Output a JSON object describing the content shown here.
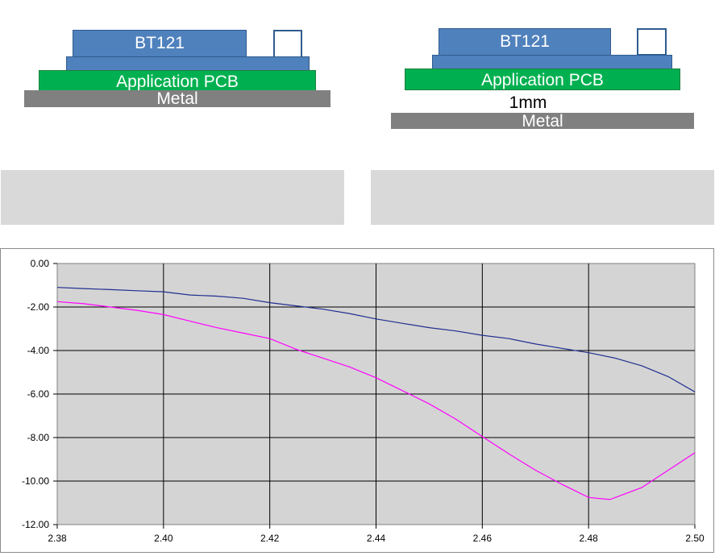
{
  "diagrams": {
    "left": {
      "chip_label": "BT121",
      "pcb_label": "Application PCB",
      "metal_label": "Metal"
    },
    "right": {
      "chip_label": "BT121",
      "pcb_label": "Application PCB",
      "gap_label": "1mm",
      "metal_label": "Metal"
    }
  },
  "colors": {
    "chip": "#4f81bd",
    "pcb": "#00b050",
    "metal": "#808080",
    "caption_box": "#d9d9d9",
    "plot_bg": "#d4d4d4",
    "series_blue": "#1f2f8f",
    "series_magenta": "#ff00ff"
  },
  "chart_data": {
    "type": "line",
    "xlim": [
      2.38,
      2.5
    ],
    "ylim": [
      -12.0,
      0.0
    ],
    "x_ticks": [
      "2.38",
      "2.40",
      "2.42",
      "2.44",
      "2.46",
      "2.48",
      "2.50"
    ],
    "y_ticks": [
      "0.00",
      "-2.00",
      "-4.00",
      "-6.00",
      "-8.00",
      "-10.00",
      "-12.00"
    ],
    "grid": true,
    "series": [
      {
        "color": "#1f2f8f",
        "x": [
          2.38,
          2.385,
          2.39,
          2.395,
          2.4,
          2.405,
          2.41,
          2.415,
          2.42,
          2.425,
          2.43,
          2.435,
          2.44,
          2.445,
          2.45,
          2.455,
          2.46,
          2.465,
          2.47,
          2.475,
          2.48,
          2.485,
          2.49,
          2.495,
          2.5
        ],
        "y": [
          -1.1,
          -1.15,
          -1.2,
          -1.25,
          -1.3,
          -1.45,
          -1.5,
          -1.6,
          -1.8,
          -1.95,
          -2.1,
          -2.3,
          -2.55,
          -2.75,
          -2.95,
          -3.1,
          -3.3,
          -3.45,
          -3.7,
          -3.9,
          -4.1,
          -4.35,
          -4.7,
          -5.2,
          -5.9
        ]
      },
      {
        "color": "#ff00ff",
        "x": [
          2.38,
          2.385,
          2.39,
          2.395,
          2.4,
          2.405,
          2.41,
          2.415,
          2.42,
          2.425,
          2.43,
          2.435,
          2.44,
          2.445,
          2.45,
          2.455,
          2.46,
          2.465,
          2.47,
          2.475,
          2.48,
          2.484,
          2.49,
          2.495,
          2.5
        ],
        "y": [
          -1.75,
          -1.85,
          -2.0,
          -2.15,
          -2.35,
          -2.65,
          -2.95,
          -3.2,
          -3.45,
          -3.95,
          -4.35,
          -4.75,
          -5.25,
          -5.85,
          -6.45,
          -7.15,
          -7.95,
          -8.75,
          -9.5,
          -10.15,
          -10.75,
          -10.85,
          -10.3,
          -9.5,
          -8.7
        ]
      }
    ]
  }
}
